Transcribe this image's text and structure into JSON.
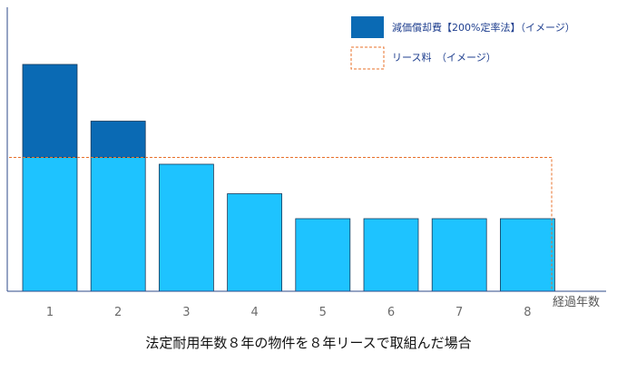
{
  "chart_data": {
    "type": "bar",
    "title": "",
    "caption": "法定耐用年数８年の物件を８年リースで取組んだ場合",
    "xlabel": "経過年数",
    "ylabel": "",
    "categories": [
      "1",
      "2",
      "3",
      "4",
      "5",
      "6",
      "7",
      "8"
    ],
    "ylim": [
      0,
      100
    ],
    "series": [
      {
        "name": "減価償却費【200%定率法】（イメージ）",
        "type": "stacked-bar",
        "lower_values": [
          59,
          59,
          56,
          43,
          32,
          32,
          32,
          32
        ],
        "upper_values": [
          41,
          16,
          0,
          0,
          0,
          0,
          0,
          0
        ],
        "values": [
          100,
          75,
          56,
          43,
          32,
          32,
          32,
          32
        ]
      },
      {
        "name": "リース料　（イメージ）",
        "type": "dashed-level",
        "values": [
          59,
          59,
          59,
          59,
          59,
          59,
          59,
          59
        ]
      }
    ],
    "colors": {
      "upper": "#0a6ab4",
      "lower": "#1ec3ff",
      "lease": "#e8702a",
      "axis": "#2e4a8a"
    },
    "legend_position": "top-right",
    "grid": false
  }
}
